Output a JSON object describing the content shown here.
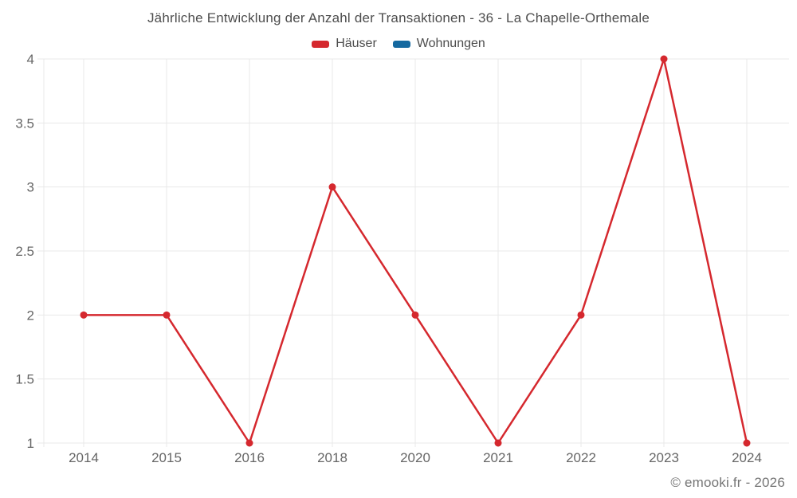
{
  "title": "Jährliche Entwicklung der Anzahl der Transaktionen - 36 - La Chapelle-Orthemale",
  "footer": "© emooki.fr - 2026",
  "colors": {
    "haeuser": "#d5282e",
    "wohnungen": "#1569a0",
    "grid": "#e8e8e8",
    "axis_text": "#666666"
  },
  "chart_data": {
    "type": "line",
    "title": "Jährliche Entwicklung der Anzahl der Transaktionen - 36 - La Chapelle-Orthemale",
    "categories": [
      "2014",
      "2015",
      "2016",
      "2018",
      "2020",
      "2021",
      "2022",
      "2023",
      "2024"
    ],
    "series": [
      {
        "name": "Häuser",
        "color": "#d5282e",
        "values": [
          2,
          2,
          1,
          3,
          2,
          1,
          2,
          4,
          1
        ]
      },
      {
        "name": "Wohnungen",
        "color": "#1569a0",
        "values": []
      }
    ],
    "yticks": [
      "1",
      "1.5",
      "2",
      "2.5",
      "3",
      "3.5",
      "4"
    ],
    "ylim": [
      1,
      4
    ],
    "xlabel": "",
    "ylabel": "",
    "grid": true,
    "legend_position": "top"
  }
}
